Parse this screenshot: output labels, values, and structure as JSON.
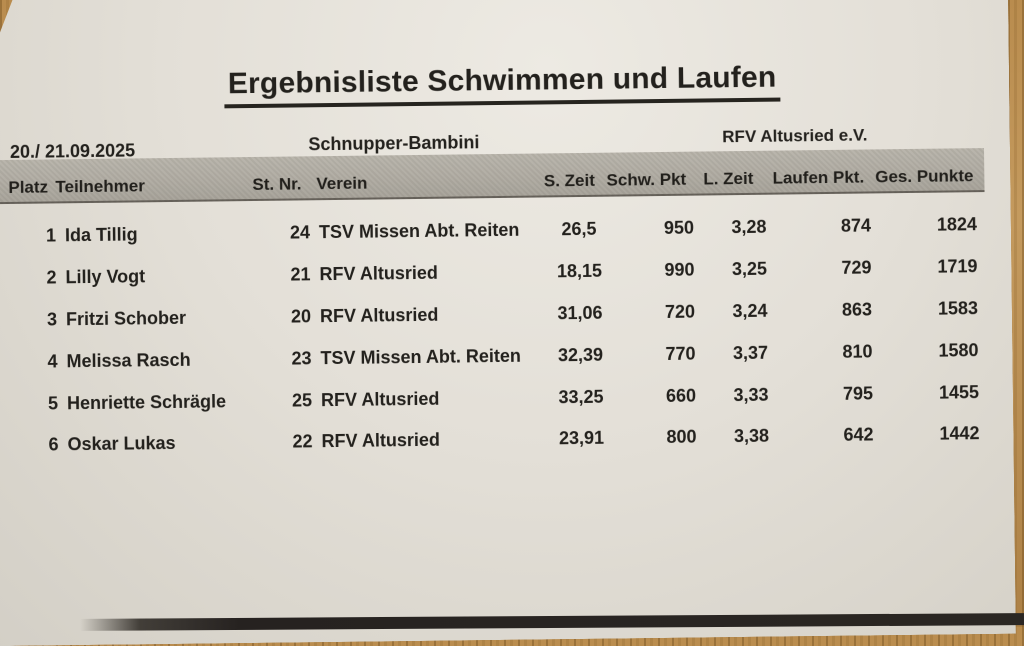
{
  "document": {
    "title": "Ergebnisliste Schwimmen und Laufen",
    "date": "20./ 21.09.2025",
    "category": "Schnupper-Bambini",
    "club": "RFV Altusried e.V."
  },
  "table": {
    "headers": [
      "Platz",
      "Teilnehmer",
      "St. Nr.",
      "Verein",
      "S. Zeit",
      "Schw. Pkt",
      "L. Zeit",
      "Laufen Pkt.",
      "Ges. Punkte"
    ],
    "rows": [
      {
        "platz": "1",
        "teilnehmer": "Ida Tillig",
        "st_nr": "24",
        "verein": "TSV Missen Abt. Reiten",
        "s_zeit": "26,5",
        "schw_pkt": "950",
        "l_zeit": "3,28",
        "laufen_pkt": "874",
        "ges_punkte": "1824"
      },
      {
        "platz": "2",
        "teilnehmer": "Lilly Vogt",
        "st_nr": "21",
        "verein": "RFV Altusried",
        "s_zeit": "18,15",
        "schw_pkt": "990",
        "l_zeit": "3,25",
        "laufen_pkt": "729",
        "ges_punkte": "1719"
      },
      {
        "platz": "3",
        "teilnehmer": "Fritzi Schober",
        "st_nr": "20",
        "verein": "RFV Altusried",
        "s_zeit": "31,06",
        "schw_pkt": "720",
        "l_zeit": "3,24",
        "laufen_pkt": "863",
        "ges_punkte": "1583"
      },
      {
        "platz": "4",
        "teilnehmer": "Melissa Rasch",
        "st_nr": "23",
        "verein": "TSV Missen Abt. Reiten",
        "s_zeit": "32,39",
        "schw_pkt": "770",
        "l_zeit": "3,37",
        "laufen_pkt": "810",
        "ges_punkte": "1580"
      },
      {
        "platz": "5",
        "teilnehmer": "Henriette Schrägle",
        "st_nr": "25",
        "verein": "RFV Altusried",
        "s_zeit": "33,25",
        "schw_pkt": "660",
        "l_zeit": "3,33",
        "laufen_pkt": "795",
        "ges_punkte": "1455"
      },
      {
        "platz": "6",
        "teilnehmer": "Oskar Lukas",
        "st_nr": "22",
        "verein": "RFV Altusried",
        "s_zeit": "23,91",
        "schw_pkt": "800",
        "l_zeit": "3,38",
        "laufen_pkt": "642",
        "ges_punkte": "1442"
      }
    ]
  },
  "colors": {
    "paper": "#e3dfd7",
    "header_band": "#b1ada4",
    "text": "#23211d",
    "wood": "#b98c4e",
    "edge_shadow": "#262220"
  }
}
